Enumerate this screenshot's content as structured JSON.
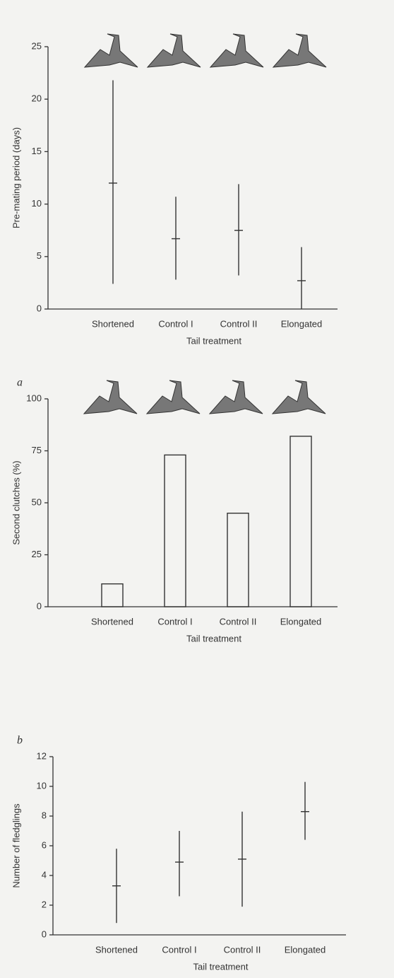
{
  "chart_data": [
    {
      "type": "errorbar",
      "y_label": "Pre-mating period (days)",
      "x_label": "Tail treatment",
      "categories": [
        "Shortened",
        "Control I",
        "Control II",
        "Elongated"
      ],
      "values": [
        12,
        6.7,
        7.5,
        2.7
      ],
      "low": [
        2.4,
        2.8,
        3.2,
        0
      ],
      "high": [
        21.8,
        10.7,
        11.9,
        5.9
      ],
      "color": "#333333",
      "ylim": [
        0,
        25
      ],
      "yticks": [
        0,
        5,
        10,
        15,
        20,
        25
      ]
    },
    {
      "type": "bar",
      "panel": "a",
      "y_label": "Second clutches (%)",
      "x_label": "Tail treatment",
      "categories": [
        "Shortened",
        "Control I",
        "Control II",
        "Elongated"
      ],
      "values": [
        11,
        73,
        45,
        82
      ],
      "color": "#333333",
      "ylim": [
        0,
        100
      ],
      "yticks": [
        0,
        25,
        50,
        75,
        100
      ]
    },
    {
      "type": "errorbar",
      "panel": "b",
      "y_label": "Number of fledglings",
      "x_label": "Tail treatment",
      "categories": [
        "Shortened",
        "Control I",
        "Control II",
        "Elongated"
      ],
      "values": [
        3.3,
        4.9,
        5.1,
        8.3
      ],
      "low": [
        0.8,
        2.6,
        1.9,
        6.4
      ],
      "high": [
        5.8,
        7.0,
        8.3,
        10.3
      ],
      "color": "#333333",
      "ylim": [
        0,
        12
      ],
      "yticks": [
        0,
        2,
        4,
        6,
        8,
        10,
        12
      ]
    }
  ]
}
